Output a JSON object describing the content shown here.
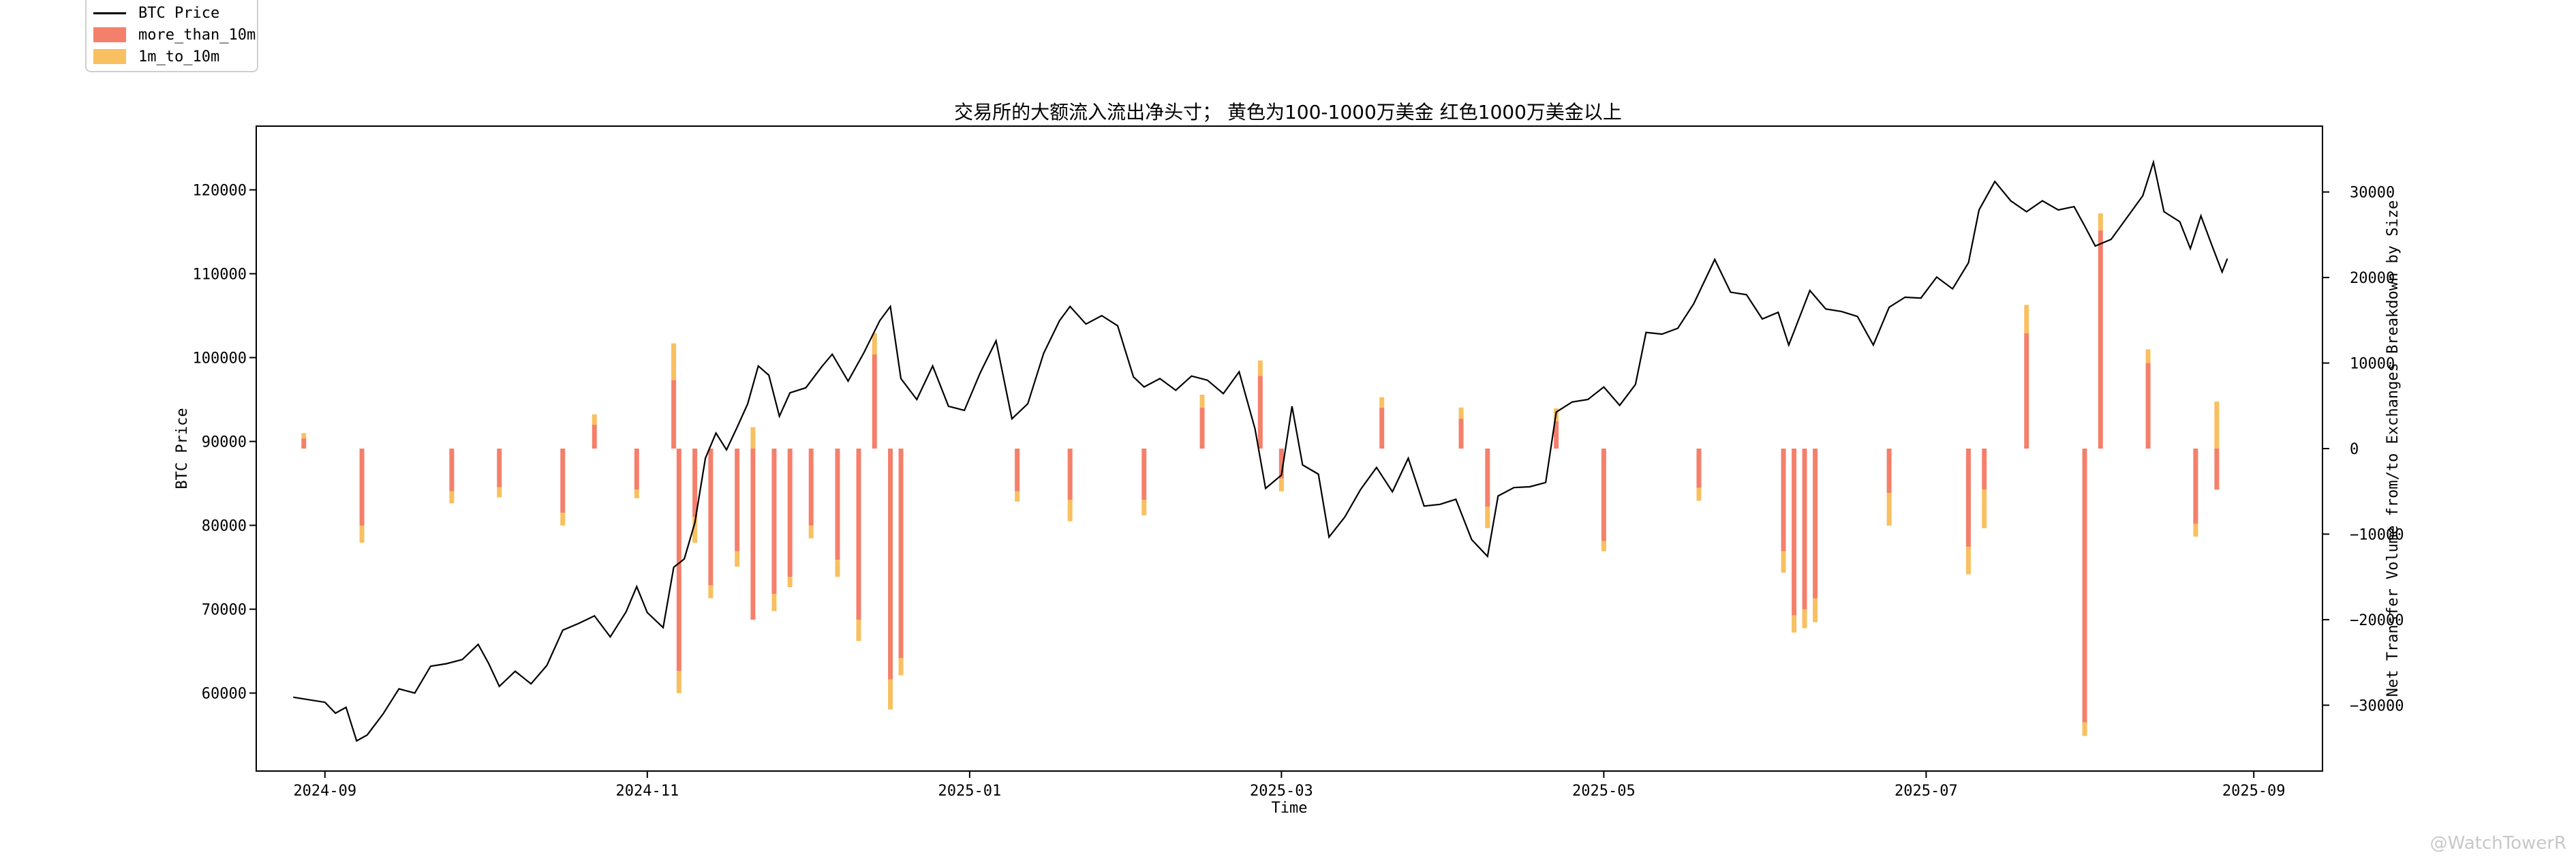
{
  "legend": {
    "price_label": "BTC Price",
    "big_label": "more_than_10m",
    "mid_label": "1m_to_10m"
  },
  "watermark": "@WatchTowerR",
  "colors": {
    "price": "#000000",
    "more_than_10m": "#f4806b",
    "1m_to_10m": "#f8c060"
  },
  "chart_data": {
    "type": "bar+line",
    "title": "交易所的大额流入流出净头寸；  黄色为100-1000万美金  红色1000万美金以上",
    "xlabel": "Time",
    "ylabel_left": "BTC Price",
    "ylabel_right": "Net Transfer Volume from/to Exchanges Breakdown by Size",
    "x_range": [
      "2024-08-19",
      "2025-09-14"
    ],
    "y_left_range": [
      50700,
      127600
    ],
    "y_right_range": [
      -37700,
      37700
    ],
    "x_ticks": [
      "2024-09",
      "2024-11",
      "2025-01",
      "2025-03",
      "2025-05",
      "2025-07",
      "2025-09"
    ],
    "y_left_ticks": [
      60000,
      70000,
      80000,
      90000,
      100000,
      110000,
      120000
    ],
    "y_right_ticks": [
      -30000,
      -20000,
      -10000,
      0,
      10000,
      20000,
      30000
    ],
    "price_series": {
      "name": "BTC Price",
      "points": [
        [
          "2024-08-26",
          59500
        ],
        [
          "2024-08-29",
          59200
        ],
        [
          "2024-09-01",
          58900
        ],
        [
          "2024-09-03",
          57600
        ],
        [
          "2024-09-05",
          58300
        ],
        [
          "2024-09-07",
          54300
        ],
        [
          "2024-09-09",
          55000
        ],
        [
          "2024-09-12",
          57500
        ],
        [
          "2024-09-15",
          60500
        ],
        [
          "2024-09-18",
          60000
        ],
        [
          "2024-09-21",
          63200
        ],
        [
          "2024-09-24",
          63500
        ],
        [
          "2024-09-27",
          64000
        ],
        [
          "2024-09-30",
          65800
        ],
        [
          "2024-10-02",
          63500
        ],
        [
          "2024-10-04",
          60800
        ],
        [
          "2024-10-07",
          62600
        ],
        [
          "2024-10-10",
          61100
        ],
        [
          "2024-10-13",
          63300
        ],
        [
          "2024-10-16",
          67500
        ],
        [
          "2024-10-19",
          68300
        ],
        [
          "2024-10-22",
          69200
        ],
        [
          "2024-10-25",
          66700
        ],
        [
          "2024-10-28",
          69700
        ],
        [
          "2024-10-30",
          72700
        ],
        [
          "2024-11-01",
          69600
        ],
        [
          "2024-11-04",
          67800
        ],
        [
          "2024-11-06",
          75000
        ],
        [
          "2024-11-08",
          76000
        ],
        [
          "2024-11-10",
          80300
        ],
        [
          "2024-11-12",
          88000
        ],
        [
          "2024-11-14",
          91000
        ],
        [
          "2024-11-16",
          89000
        ],
        [
          "2024-11-18",
          91700
        ],
        [
          "2024-11-20",
          94500
        ],
        [
          "2024-11-22",
          99000
        ],
        [
          "2024-11-24",
          97900
        ],
        [
          "2024-11-26",
          93000
        ],
        [
          "2024-11-28",
          95800
        ],
        [
          "2024-12-01",
          96400
        ],
        [
          "2024-12-04",
          98900
        ],
        [
          "2024-12-06",
          100400
        ],
        [
          "2024-12-09",
          97200
        ],
        [
          "2024-12-12",
          100600
        ],
        [
          "2024-12-15",
          104400
        ],
        [
          "2024-12-17",
          106100
        ],
        [
          "2024-12-19",
          97500
        ],
        [
          "2024-12-22",
          95000
        ],
        [
          "2024-12-25",
          99000
        ],
        [
          "2024-12-28",
          94200
        ],
        [
          "2024-12-31",
          93700
        ],
        [
          "2025-01-03",
          98200
        ],
        [
          "2025-01-06",
          102000
        ],
        [
          "2025-01-09",
          92700
        ],
        [
          "2025-01-12",
          94500
        ],
        [
          "2025-01-15",
          100500
        ],
        [
          "2025-01-18",
          104400
        ],
        [
          "2025-01-20",
          106100
        ],
        [
          "2025-01-23",
          104000
        ],
        [
          "2025-01-26",
          105000
        ],
        [
          "2025-01-29",
          103800
        ],
        [
          "2025-02-01",
          97700
        ],
        [
          "2025-02-03",
          96500
        ],
        [
          "2025-02-06",
          97500
        ],
        [
          "2025-02-09",
          96100
        ],
        [
          "2025-02-12",
          97800
        ],
        [
          "2025-02-15",
          97300
        ],
        [
          "2025-02-18",
          95700
        ],
        [
          "2025-02-21",
          98300
        ],
        [
          "2025-02-24",
          91500
        ],
        [
          "2025-02-26",
          84400
        ],
        [
          "2025-03-01",
          86000
        ],
        [
          "2025-03-03",
          94200
        ],
        [
          "2025-03-05",
          87200
        ],
        [
          "2025-03-08",
          86100
        ],
        [
          "2025-03-10",
          78600
        ],
        [
          "2025-03-13",
          81000
        ],
        [
          "2025-03-16",
          84300
        ],
        [
          "2025-03-19",
          86900
        ],
        [
          "2025-03-22",
          84000
        ],
        [
          "2025-03-25",
          88000
        ],
        [
          "2025-03-28",
          82300
        ],
        [
          "2025-03-31",
          82500
        ],
        [
          "2025-04-03",
          83100
        ],
        [
          "2025-04-06",
          78300
        ],
        [
          "2025-04-09",
          76300
        ],
        [
          "2025-04-11",
          83500
        ],
        [
          "2025-04-14",
          84500
        ],
        [
          "2025-04-17",
          84600
        ],
        [
          "2025-04-20",
          85100
        ],
        [
          "2025-04-22",
          93500
        ],
        [
          "2025-04-25",
          94700
        ],
        [
          "2025-04-28",
          95000
        ],
        [
          "2025-05-01",
          96500
        ],
        [
          "2025-05-04",
          94300
        ],
        [
          "2025-05-07",
          96800
        ],
        [
          "2025-05-09",
          103000
        ],
        [
          "2025-05-12",
          102800
        ],
        [
          "2025-05-15",
          103500
        ],
        [
          "2025-05-18",
          106400
        ],
        [
          "2025-05-22",
          111700
        ],
        [
          "2025-05-25",
          107800
        ],
        [
          "2025-05-28",
          107500
        ],
        [
          "2025-05-31",
          104600
        ],
        [
          "2025-06-03",
          105400
        ],
        [
          "2025-06-05",
          101500
        ],
        [
          "2025-06-09",
          108000
        ],
        [
          "2025-06-12",
          105800
        ],
        [
          "2025-06-15",
          105500
        ],
        [
          "2025-06-18",
          104900
        ],
        [
          "2025-06-21",
          101500
        ],
        [
          "2025-06-24",
          106000
        ],
        [
          "2025-06-27",
          107200
        ],
        [
          "2025-06-30",
          107100
        ],
        [
          "2025-07-03",
          109600
        ],
        [
          "2025-07-06",
          108200
        ],
        [
          "2025-07-09",
          111300
        ],
        [
          "2025-07-11",
          117600
        ],
        [
          "2025-07-14",
          121000
        ],
        [
          "2025-07-17",
          118700
        ],
        [
          "2025-07-20",
          117400
        ],
        [
          "2025-07-23",
          118700
        ],
        [
          "2025-07-26",
          117600
        ],
        [
          "2025-07-29",
          118000
        ],
        [
          "2025-07-31",
          115700
        ],
        [
          "2025-08-02",
          113300
        ],
        [
          "2025-08-05",
          114100
        ],
        [
          "2025-08-08",
          116700
        ],
        [
          "2025-08-11",
          119300
        ],
        [
          "2025-08-13",
          123300
        ],
        [
          "2025-08-15",
          117400
        ],
        [
          "2025-08-18",
          116200
        ],
        [
          "2025-08-20",
          113000
        ],
        [
          "2025-08-22",
          116900
        ],
        [
          "2025-08-24",
          113500
        ],
        [
          "2025-08-26",
          110200
        ],
        [
          "2025-08-27",
          111800
        ]
      ]
    },
    "bar_series": [
      {
        "name": "more_than_10m",
        "points": [
          [
            "2024-08-28",
            1200
          ],
          [
            "2024-09-08",
            -9000
          ],
          [
            "2024-09-25",
            -5000
          ],
          [
            "2024-10-04",
            -4500
          ],
          [
            "2024-10-16",
            -7500
          ],
          [
            "2024-10-22",
            2800
          ],
          [
            "2024-10-30",
            -4800
          ],
          [
            "2024-11-06",
            8000
          ],
          [
            "2024-11-07",
            -26000
          ],
          [
            "2024-11-10",
            -8000
          ],
          [
            "2024-11-13",
            -16000
          ],
          [
            "2024-11-18",
            -12000
          ],
          [
            "2024-11-21",
            -20000
          ],
          [
            "2024-11-25",
            -17000
          ],
          [
            "2024-11-28",
            -15000
          ],
          [
            "2024-12-02",
            -9000
          ],
          [
            "2024-12-07",
            -13000
          ],
          [
            "2024-12-11",
            -20000
          ],
          [
            "2024-12-14",
            11000
          ],
          [
            "2024-12-17",
            -27000
          ],
          [
            "2024-12-19",
            -24500
          ],
          [
            "2025-01-10",
            -5000
          ],
          [
            "2025-01-20",
            -6000
          ],
          [
            "2025-02-03",
            -6000
          ],
          [
            "2025-02-14",
            4800
          ],
          [
            "2025-02-25",
            8500
          ],
          [
            "2025-03-01",
            -3500
          ],
          [
            "2025-03-20",
            4800
          ],
          [
            "2025-04-04",
            3500
          ],
          [
            "2025-04-09",
            -6800
          ],
          [
            "2025-04-22",
            3200
          ],
          [
            "2025-05-01",
            -10800
          ],
          [
            "2025-05-19",
            -4600
          ],
          [
            "2025-06-04",
            -12000
          ],
          [
            "2025-06-06",
            -19500
          ],
          [
            "2025-06-08",
            -18800
          ],
          [
            "2025-06-10",
            -17500
          ],
          [
            "2025-06-24",
            -5200
          ],
          [
            "2025-07-09",
            -11500
          ],
          [
            "2025-07-12",
            -4800
          ],
          [
            "2025-07-20",
            13500
          ],
          [
            "2025-07-31",
            -32000
          ],
          [
            "2025-08-03",
            25500
          ],
          [
            "2025-08-12",
            10000
          ],
          [
            "2025-08-21",
            -8800
          ],
          [
            "2025-08-25",
            -4800
          ]
        ]
      },
      {
        "name": "1m_to_10m",
        "points": [
          [
            "2024-08-28",
            600
          ],
          [
            "2024-09-08",
            -2000
          ],
          [
            "2024-09-25",
            -1400
          ],
          [
            "2024-10-04",
            -1200
          ],
          [
            "2024-10-16",
            -1500
          ],
          [
            "2024-10-22",
            1200
          ],
          [
            "2024-10-30",
            -1000
          ],
          [
            "2024-11-06",
            4300
          ],
          [
            "2024-11-07",
            -2600
          ],
          [
            "2024-11-10",
            -3000
          ],
          [
            "2024-11-13",
            -1500
          ],
          [
            "2024-11-18",
            -1800
          ],
          [
            "2024-11-21",
            2500
          ],
          [
            "2024-11-25",
            -2000
          ],
          [
            "2024-11-28",
            -1200
          ],
          [
            "2024-12-02",
            -1500
          ],
          [
            "2024-12-07",
            -2000
          ],
          [
            "2024-12-11",
            -2500
          ],
          [
            "2024-12-14",
            2500
          ],
          [
            "2024-12-17",
            -3500
          ],
          [
            "2024-12-19",
            -2000
          ],
          [
            "2025-01-10",
            -1200
          ],
          [
            "2025-01-20",
            -2500
          ],
          [
            "2025-02-03",
            -1800
          ],
          [
            "2025-02-14",
            1500
          ],
          [
            "2025-02-25",
            1800
          ],
          [
            "2025-03-01",
            -1500
          ],
          [
            "2025-03-20",
            1200
          ],
          [
            "2025-04-04",
            1300
          ],
          [
            "2025-04-09",
            -2500
          ],
          [
            "2025-04-22",
            1500
          ],
          [
            "2025-05-01",
            -1200
          ],
          [
            "2025-05-19",
            -1500
          ],
          [
            "2025-06-04",
            -2500
          ],
          [
            "2025-06-06",
            -2000
          ],
          [
            "2025-06-08",
            -2200
          ],
          [
            "2025-06-10",
            -2800
          ],
          [
            "2025-06-24",
            -3800
          ],
          [
            "2025-07-09",
            -3200
          ],
          [
            "2025-07-12",
            -4500
          ],
          [
            "2025-07-20",
            3300
          ],
          [
            "2025-07-31",
            -1600
          ],
          [
            "2025-08-03",
            2000
          ],
          [
            "2025-08-12",
            1600
          ],
          [
            "2025-08-21",
            -1500
          ],
          [
            "2025-08-25",
            5500
          ]
        ]
      }
    ]
  }
}
